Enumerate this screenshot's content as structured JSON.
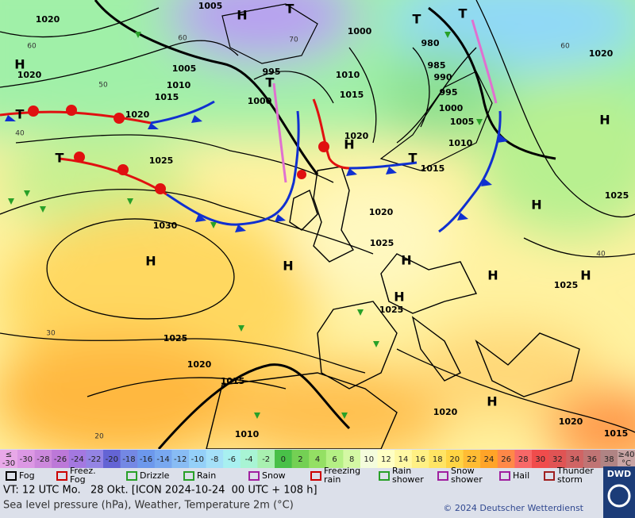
{
  "map": {
    "labels": [
      "1020",
      "1005",
      "H",
      "T",
      "1000",
      "T",
      "980",
      "T",
      "1020",
      "H",
      "1020",
      "1005",
      "995",
      "T",
      "1010",
      "985",
      "990",
      "995",
      "1010",
      "1015",
      "1000",
      "1015",
      "1000",
      "1005",
      "H",
      "1020",
      "T",
      "1020",
      "H",
      "1010",
      "T",
      "1025",
      "T",
      "1015",
      "1025",
      "1020",
      "H",
      "1030",
      "1025",
      "H",
      "H",
      "H",
      "H",
      "H",
      "1025",
      "H",
      "1025",
      "1025",
      "1020",
      "1015",
      "1020",
      "H",
      "1020",
      "1015",
      "1010",
      "60",
      "50",
      "40",
      "30",
      "20",
      "70",
      "60",
      "40",
      "60"
    ]
  },
  "scale": {
    "first": {
      "top": "≤",
      "bottom": "-30",
      "color": "#e8a8e8"
    },
    "cells": [
      {
        "label": "-30",
        "color": "#dc98e4"
      },
      {
        "label": "-28",
        "color": "#cc88dc"
      },
      {
        "label": "-26",
        "color": "#bc78d8"
      },
      {
        "label": "-24",
        "color": "#a478e0"
      },
      {
        "label": "-22",
        "color": "#9484e4"
      },
      {
        "label": "-20",
        "color": "#6464d4"
      },
      {
        "label": "-18",
        "color": "#7488e4"
      },
      {
        "label": "-16",
        "color": "#6c98ec"
      },
      {
        "label": "-14",
        "color": "#78a8f0"
      },
      {
        "label": "-12",
        "color": "#88bcf4"
      },
      {
        "label": "-10",
        "color": "#94d0f8"
      },
      {
        "label": "-8",
        "color": "#a4e0f8"
      },
      {
        "label": "-6",
        "color": "#a8f0f0"
      },
      {
        "label": "-4",
        "color": "#a8f4d4"
      },
      {
        "label": "-2",
        "color": "#a8f0b0"
      },
      {
        "label": "0",
        "color": "#48c048"
      },
      {
        "label": "2",
        "color": "#74d054"
      },
      {
        "label": "4",
        "color": "#94e064"
      },
      {
        "label": "6",
        "color": "#b4f084"
      },
      {
        "label": "8",
        "color": "#d4f8a4"
      },
      {
        "label": "10",
        "color": "#f4fcdc"
      },
      {
        "label": "12",
        "color": "#ffffc4"
      },
      {
        "label": "14",
        "color": "#fff8a4"
      },
      {
        "label": "16",
        "color": "#fff084"
      },
      {
        "label": "18",
        "color": "#ffe464"
      },
      {
        "label": "20",
        "color": "#ffd444"
      },
      {
        "label": "22",
        "color": "#ffbc34"
      },
      {
        "label": "24",
        "color": "#ffa428"
      },
      {
        "label": "26",
        "color": "#ff8848"
      },
      {
        "label": "28",
        "color": "#f86868"
      },
      {
        "label": "30",
        "color": "#f04c4c"
      },
      {
        "label": "32",
        "color": "#e05454"
      },
      {
        "label": "34",
        "color": "#d06464"
      },
      {
        "label": "36",
        "color": "#c07474"
      },
      {
        "label": "38",
        "color": "#b08484"
      }
    ],
    "last": {
      "top": "≥40",
      "bottom": "°C",
      "color": "#c8a4a4"
    }
  },
  "legend": [
    [
      "Fog"
    ],
    [
      "Freez.",
      "Fog"
    ],
    [
      "Drizzle"
    ],
    [
      "Rain"
    ],
    [
      "Snow"
    ],
    [
      "Freezing",
      "rain"
    ],
    [
      "Rain",
      "shower"
    ],
    [
      "Snow",
      "shower"
    ],
    [
      "Hail"
    ],
    [
      "Thunder",
      "storm"
    ]
  ],
  "footer": {
    "valid": "VT: 12 UTC Mo.   28 Okt. [ICON 2024-10-24  00 UTC + 108 h]",
    "subtitle": "Sea level pressure (hPa), Weather, Temperature 2m (°C)",
    "copyright": "© 2024 Deutscher Wetterdienst",
    "logo": "DWD"
  }
}
